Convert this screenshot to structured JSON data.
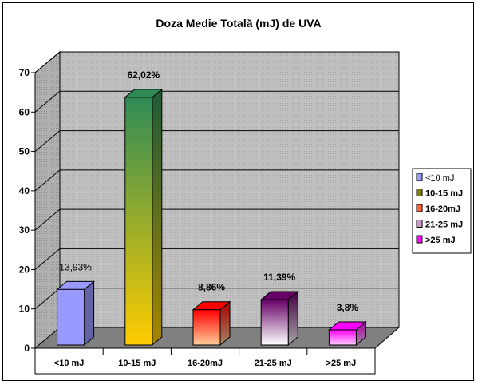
{
  "chart_data": {
    "type": "bar",
    "title": "Doza Medie Totală (mJ) de UVA",
    "categories": [
      "<10 mJ",
      "10-15 mJ",
      "16-20mJ",
      "21-25 mJ",
      ">25 mJ"
    ],
    "values": [
      13.93,
      62.02,
      8.86,
      11.39,
      3.8
    ],
    "data_labels": [
      "13,93%",
      "62,02%",
      "8,86%",
      "11,39%",
      "3,8%"
    ],
    "y_ticks": [
      "0",
      "10",
      "20",
      "30",
      "40",
      "50",
      "60",
      "70"
    ],
    "ylim": [
      0,
      70
    ],
    "grid": true,
    "three_d": true,
    "legend": {
      "placement": "right",
      "entries": [
        "<10 mJ",
        "10-15 mJ",
        "16-20mJ",
        "21-25 mJ",
        ">25 mJ"
      ]
    },
    "colors": {
      "bar1": "#9999ff",
      "bar2_top": "#2e8b57",
      "bar2_bottom": "#ffcc00",
      "bar3_top": "#ff0000",
      "bar3_bottom": "#ffcc99",
      "bar4_top": "#660066",
      "bar4_bottom": "#ffffff",
      "bar5_top": "#ff00ff",
      "bar5_bottom": "#ffccff",
      "floor": "#808080",
      "wall": "#c0c0c0",
      "legend_2": "#808000",
      "legend_3": "#ff6633",
      "legend_4": "#cc99cc"
    }
  }
}
